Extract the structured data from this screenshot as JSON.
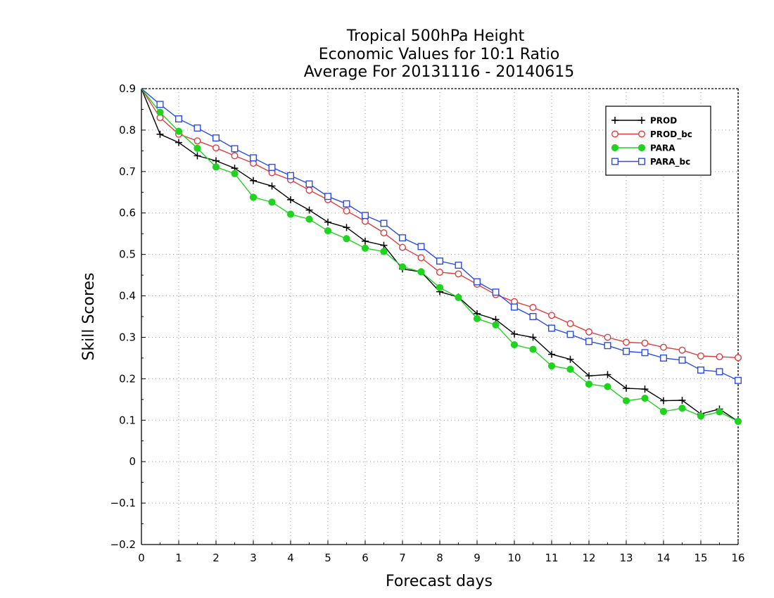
{
  "chart_data": {
    "type": "line",
    "title_lines": [
      "Tropical 500hPa Height",
      "Economic Values for 10:1 Ratio",
      "Average For 20131116 - 20140615"
    ],
    "xlabel": "Forecast days",
    "ylabel": "Skill Scores",
    "xlim": [
      0,
      16
    ],
    "ylim": [
      -0.2,
      0.9
    ],
    "x_ticks": [
      0,
      1,
      2,
      3,
      4,
      5,
      6,
      7,
      8,
      9,
      10,
      11,
      12,
      13,
      14,
      15,
      16
    ],
    "y_ticks": [
      -0.2,
      -0.1,
      0,
      0.1,
      0.2,
      0.3,
      0.4,
      0.5,
      0.6,
      0.7,
      0.8,
      0.9
    ],
    "x_tick_labels": [
      "0",
      "1",
      "2",
      "3",
      "4",
      "5",
      "6",
      "7",
      "8",
      "9",
      "10",
      "11",
      "12",
      "13",
      "14",
      "15",
      "16"
    ],
    "y_tick_labels": [
      "−0.2",
      "−0.1",
      "0",
      "0.1",
      "0.2",
      "0.3",
      "0.4",
      "0.5",
      "0.6",
      "0.7",
      "0.8",
      "0.9"
    ],
    "grid": true,
    "legend_position": "top-right",
    "x": [
      0,
      0.5,
      1,
      1.5,
      2,
      2.5,
      3,
      3.5,
      4,
      4.5,
      5,
      5.5,
      6,
      6.5,
      7,
      7.5,
      8,
      8.5,
      9,
      9.5,
      10,
      10.5,
      11,
      11.5,
      12,
      12.5,
      13,
      13.5,
      14,
      14.5,
      15,
      15.5,
      16
    ],
    "series": [
      {
        "name": "PROD",
        "color": "#000000",
        "marker": "plus",
        "values": [
          0.9,
          0.79,
          0.77,
          0.738,
          0.726,
          0.708,
          0.678,
          0.665,
          0.632,
          0.607,
          0.578,
          0.565,
          0.532,
          0.522,
          0.465,
          0.458,
          0.41,
          0.397,
          0.357,
          0.343,
          0.308,
          0.3,
          0.259,
          0.247,
          0.207,
          0.21,
          0.177,
          0.175,
          0.147,
          0.148,
          0.115,
          0.127,
          0.097
        ]
      },
      {
        "name": "PROD_bc",
        "color": "#e23c3c",
        "marker": "open-circle",
        "values": [
          0.9,
          0.83,
          0.79,
          0.774,
          0.757,
          0.738,
          0.72,
          0.697,
          0.68,
          0.655,
          0.632,
          0.605,
          0.58,
          0.552,
          0.517,
          0.492,
          0.457,
          0.453,
          0.428,
          0.403,
          0.386,
          0.372,
          0.353,
          0.333,
          0.313,
          0.3,
          0.288,
          0.286,
          0.276,
          0.269,
          0.255,
          0.253,
          0.251
        ]
      },
      {
        "name": "PARA",
        "color": "#1fd41f",
        "marker": "filled-circle",
        "values": [
          0.9,
          0.843,
          0.797,
          0.756,
          0.711,
          0.695,
          0.638,
          0.626,
          0.597,
          0.585,
          0.557,
          0.538,
          0.515,
          0.507,
          0.47,
          0.458,
          0.42,
          0.396,
          0.345,
          0.33,
          0.282,
          0.271,
          0.231,
          0.223,
          0.187,
          0.181,
          0.147,
          0.153,
          0.121,
          0.129,
          0.11,
          0.12,
          0.097
        ]
      },
      {
        "name": "PARA_bc",
        "color": "#2b4ce8",
        "marker": "open-square",
        "values": [
          0.9,
          0.862,
          0.827,
          0.805,
          0.781,
          0.755,
          0.733,
          0.71,
          0.69,
          0.67,
          0.64,
          0.622,
          0.594,
          0.575,
          0.54,
          0.519,
          0.484,
          0.474,
          0.434,
          0.409,
          0.373,
          0.35,
          0.322,
          0.307,
          0.29,
          0.28,
          0.266,
          0.263,
          0.25,
          0.245,
          0.221,
          0.217,
          0.196
        ]
      }
    ]
  }
}
